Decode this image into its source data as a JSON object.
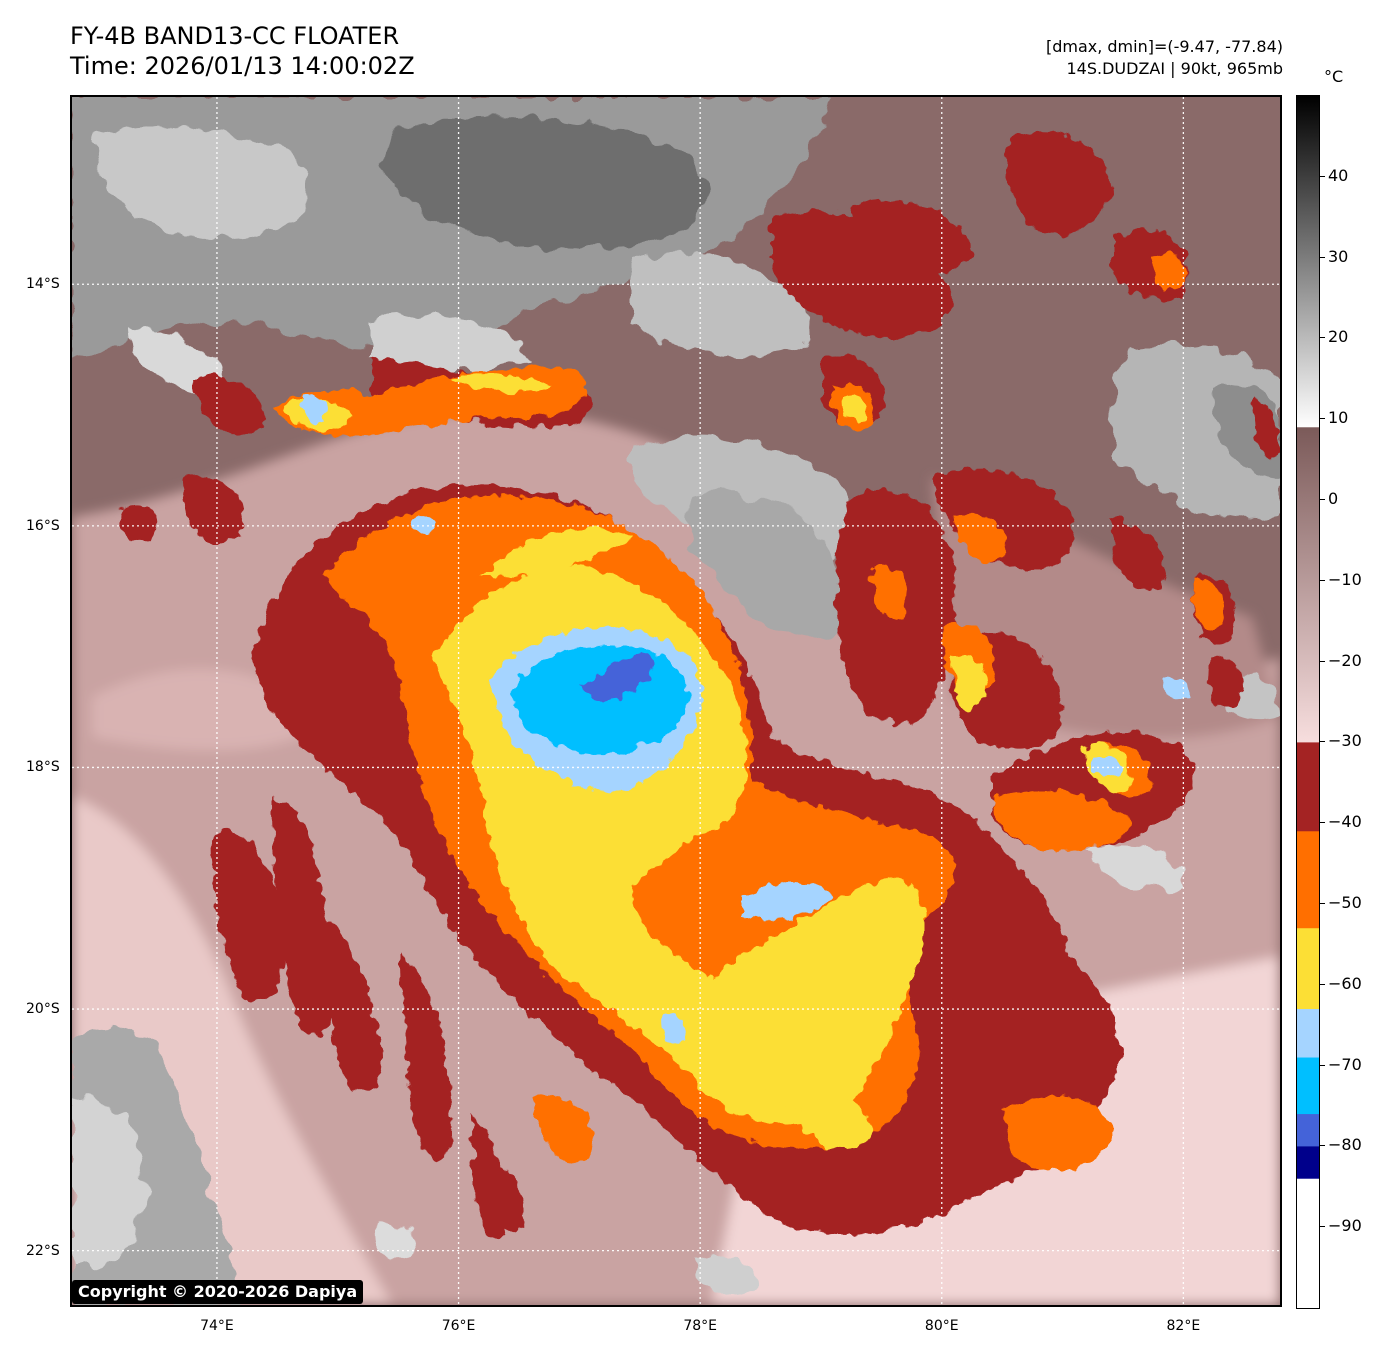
{
  "header": {
    "title_line1": "FY-4B BAND13-CC FLOATER",
    "title_line2": "Time: 2026/01/13 14:00:02Z",
    "info_line1": "[dmax, dmin]=(-9.47, -77.84)",
    "info_line2": "14S.DUDZAI | 90kt, 965mb"
  },
  "map": {
    "lat_labels": [
      "14°S",
      "16°S",
      "18°S",
      "20°S",
      "22°S"
    ],
    "lon_labels": [
      "74°E",
      "76°E",
      "78°E",
      "80°E",
      "82°E"
    ],
    "lat_values": [
      -14,
      -16,
      -18,
      -20,
      -22
    ],
    "lon_values": [
      74,
      76,
      78,
      80,
      82
    ],
    "lat_range": [
      -22.45,
      -12.45
    ],
    "lon_range": [
      72.8,
      82.8
    ],
    "grid": true,
    "storm": "14S.DUDZAI",
    "colors": {
      "warm_cloud_free": "#7b5a59",
      "light_pink": "#f2d5d5",
      "dark_red": "#a42323",
      "orange": "#ff6f00",
      "yellow": "#fcdf35",
      "light_blue": "#a5d4ff",
      "cyan": "#00bfff",
      "royal_blue": "#4463d9",
      "navy": "#00008b"
    }
  },
  "colorbar": {
    "unit": "°C",
    "ticks": [
      "40",
      "30",
      "20",
      "10",
      "0",
      "−10",
      "−20",
      "−30",
      "−40",
      "−50",
      "−60",
      "−70",
      "−80",
      "−90"
    ],
    "tick_values": [
      40,
      30,
      20,
      10,
      0,
      -10,
      -20,
      -30,
      -40,
      -50,
      -60,
      -70,
      -80,
      -90
    ],
    "range": [
      -100,
      50
    ],
    "segments": [
      {
        "from": 50,
        "to": 9,
        "type": "gradient",
        "colors": [
          "#000000",
          "#ffffff"
        ]
      },
      {
        "from": 9,
        "to": -30,
        "type": "gradient",
        "colors": [
          "#7b5a59",
          "#f7dede"
        ]
      },
      {
        "from": -30,
        "to": -41,
        "type": "solid",
        "colors": [
          "#a42323"
        ]
      },
      {
        "from": -41,
        "to": -53,
        "type": "solid",
        "colors": [
          "#ff6f00"
        ]
      },
      {
        "from": -53,
        "to": -63,
        "type": "solid",
        "colors": [
          "#fcdf35"
        ]
      },
      {
        "from": -63,
        "to": -69,
        "type": "solid",
        "colors": [
          "#a5d4ff"
        ]
      },
      {
        "from": -69,
        "to": -76,
        "type": "solid",
        "colors": [
          "#00bfff"
        ]
      },
      {
        "from": -76,
        "to": -80,
        "type": "solid",
        "colors": [
          "#4463d9"
        ]
      },
      {
        "from": -80,
        "to": -84,
        "type": "solid",
        "colors": [
          "#00008b"
        ]
      },
      {
        "from": -84,
        "to": -100,
        "type": "solid",
        "colors": [
          "#ffffff"
        ]
      }
    ]
  },
  "copyright": "Copyright © 2020-2026 Dapiya"
}
